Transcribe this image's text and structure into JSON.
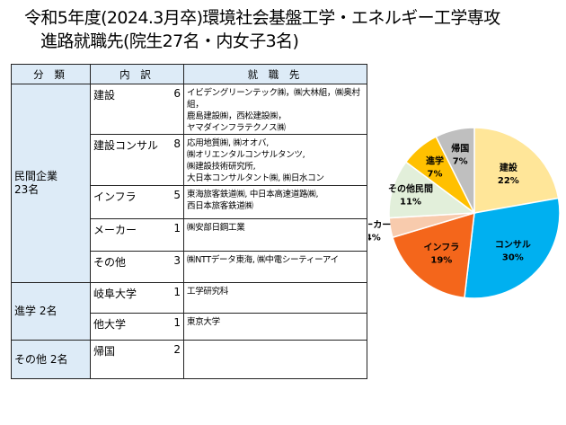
{
  "title": {
    "line1": "令和5年度(2024.3月卒)環境社会基盤工学・エネルギー工学専攻",
    "line2": "進路就職先(院生27名・内女子3名)"
  },
  "table": {
    "headers": [
      "分 類",
      "内 訳",
      "就 職 先"
    ],
    "groups": [
      {
        "category": "民間企業\n23名",
        "rows": [
          {
            "sub": "建設",
            "count": "6",
            "dest": "イビデングリーンテック㈱，㈱大林組，㈱奥村組，\n鹿島建設㈱，西松建設㈱，\nヤマダインフラテクノス㈱"
          },
          {
            "sub": "建設コンサル",
            "count": "8",
            "dest": "応用地質㈱, ㈱オオバ,\n㈱オリエンタルコンサルタンツ,\n㈱建設技術研究所,\n大日本コンサルタント㈱, ㈱日水コン"
          },
          {
            "sub": "インフラ",
            "count": "5",
            "dest": "東海旅客鉄道㈱, 中日本高速道路㈱,\n西日本旅客鉄道㈱"
          },
          {
            "sub": "メーカー",
            "count": "1",
            "dest": "㈱安部日鋼工業"
          },
          {
            "sub": "その他",
            "count": "3",
            "dest": "㈱NTTデータ東海, ㈱中電シーティーアイ"
          }
        ]
      },
      {
        "category": "進学 2名",
        "rows": [
          {
            "sub": "岐阜大学",
            "count": "1",
            "dest": "工学研究科"
          },
          {
            "sub": "他大学",
            "count": "1",
            "dest": "東京大学"
          }
        ]
      },
      {
        "category": "その他 2名",
        "rows": [
          {
            "sub": "帰国",
            "count": "2",
            "dest": ""
          }
        ]
      }
    ]
  },
  "chart_data": {
    "type": "pie",
    "title": "",
    "slices": [
      {
        "label": "建設",
        "value": 6,
        "pct": "22%",
        "color": "#FFE699"
      },
      {
        "label": "コンサル",
        "value": 8,
        "pct": "30%",
        "color": "#00B0F0"
      },
      {
        "label": "インフラ",
        "value": 5,
        "pct": "19%",
        "color": "#F4661B"
      },
      {
        "label": "メーカー",
        "value": 1,
        "pct": "4%",
        "color": "#F8CBAD"
      },
      {
        "label": "その他民間",
        "value": 3,
        "pct": "11%",
        "color": "#E2EFDA"
      },
      {
        "label": "進学",
        "value": 2,
        "pct": "7%",
        "color": "#FFC000"
      },
      {
        "label": "帰国",
        "value": 2,
        "pct": "7%",
        "color": "#BFBFBF"
      }
    ]
  }
}
